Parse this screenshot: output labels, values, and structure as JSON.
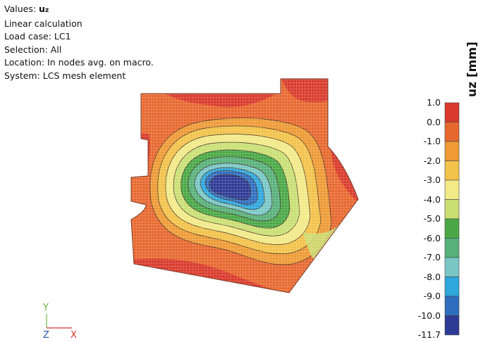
{
  "info": {
    "values_prefix": "Values: ",
    "values_quantity": "u",
    "values_subscript": "z",
    "lines": [
      "Linear calculation",
      "Load case: LC1",
      "Selection: All",
      "Location: In nodes avg. on macro.",
      "System: LCS mesh element"
    ]
  },
  "legend": {
    "title": "uz [mm]",
    "ticks": [
      "1.0",
      "0.0",
      "-1.0",
      "-2.0",
      "-3.0",
      "-4.0",
      "-5.0",
      "-6.0",
      "-7.0",
      "-8.0",
      "-9.0",
      "-10.0",
      "-11.7"
    ],
    "colors": [
      "#d93a2b",
      "#e7682e",
      "#ee9a35",
      "#f2c24a",
      "#f2e987",
      "#c9df74",
      "#49a845",
      "#58b07a",
      "#78c7c5",
      "#2ea7dd",
      "#2f6dbf",
      "#2c3a94"
    ]
  },
  "axes": {
    "y": "Y",
    "z": "Z",
    "x": "X",
    "y_color": "#6cb33f",
    "x_color": "#d9342b",
    "z_color": "#2b58a8"
  }
}
